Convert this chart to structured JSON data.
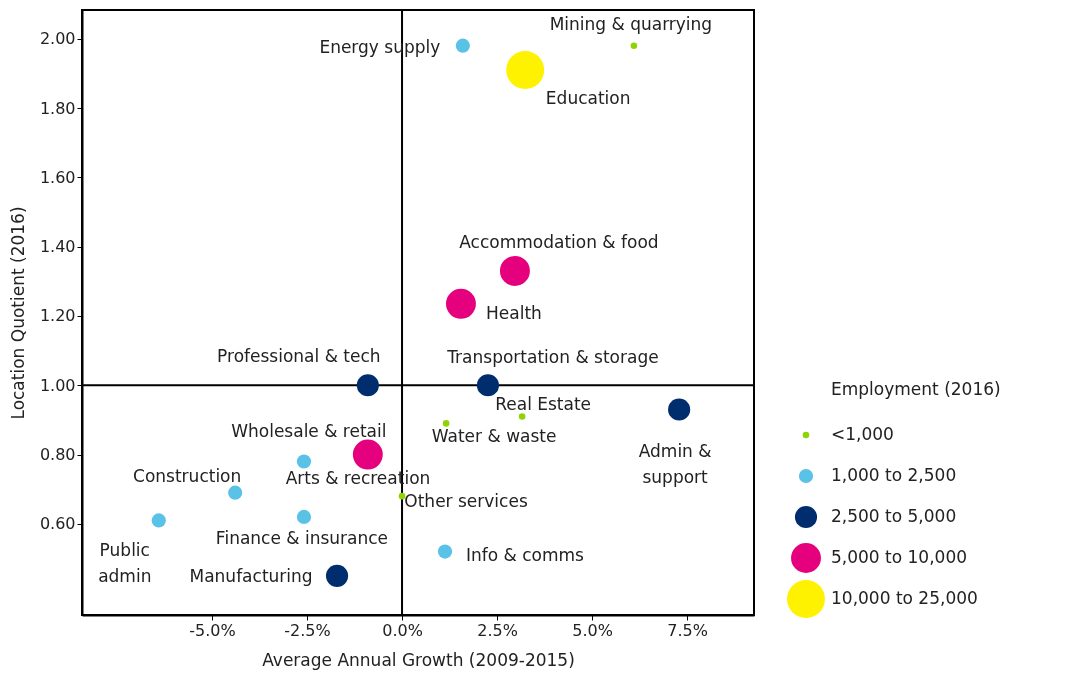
{
  "chart_data": {
    "type": "bubble",
    "xlabel": "Average Annual Growth (2009-2015)",
    "ylabel": "Location Quotient (2016)",
    "legend_title": "Employment (2016)",
    "legend": "right",
    "grid": false,
    "xlim": [
      -8.42,
      9.26
    ],
    "ylim": [
      0.337,
      2.083
    ],
    "xticks": [
      {
        "value": -5,
        "label": "-5.0%"
      },
      {
        "value": -2.5,
        "label": "-2.5%"
      },
      {
        "value": 0,
        "label": "0.0%"
      },
      {
        "value": 2.5,
        "label": "2.5%"
      },
      {
        "value": 5,
        "label": "5.0%"
      },
      {
        "value": 7.5,
        "label": "7.5%"
      }
    ],
    "yticks": [
      {
        "value": 0.6,
        "label": "0.60"
      },
      {
        "value": 0.8,
        "label": "0.80"
      },
      {
        "value": 1,
        "label": "1.00"
      },
      {
        "value": 1.2,
        "label": "1.20"
      },
      {
        "value": 1.4,
        "label": "1.40"
      },
      {
        "value": 1.6,
        "label": "1.60"
      },
      {
        "value": 1.8,
        "label": "1.80"
      },
      {
        "value": 2,
        "label": "2.00"
      }
    ],
    "series": [
      {
        "name": "<1,000",
        "color": "#8fd400",
        "x": [
          6.1,
          3.16,
          1.16,
          0.0
        ],
        "values": [
          1.98,
          0.91,
          0.89,
          0.68
        ],
        "sizes": [
          0.03,
          0.03,
          0.03,
          0.03
        ]
      },
      {
        "name": "1,000 to 2,500",
        "color": "#5bc2e7",
        "x": [
          1.6,
          -2.58,
          -4.39,
          -6.4,
          -2.58,
          1.13
        ],
        "values": [
          1.98,
          0.78,
          0.69,
          0.61,
          0.62,
          0.52
        ],
        "sizes": [
          0.14,
          0.14,
          0.14,
          0.14,
          0.14,
          0.14
        ]
      },
      {
        "name": "2,500 to 5,000",
        "color": "#002d6e",
        "x": [
          -0.9,
          2.26,
          7.29,
          -1.71
        ],
        "values": [
          1.0,
          1.0,
          0.93,
          0.45
        ],
        "sizes": [
          0.34,
          0.34,
          0.34,
          0.34
        ]
      },
      {
        "name": "5,000 to 10,000",
        "color": "#e5007e",
        "x": [
          2.97,
          1.55,
          -0.9
        ],
        "values": [
          1.33,
          1.235,
          0.8
        ],
        "sizes": [
          0.62,
          0.62,
          0.62
        ]
      },
      {
        "name": "10,000 to 25,000",
        "color": "#fff200",
        "x": [
          3.24
        ],
        "values": [
          1.91
        ],
        "sizes": [
          1
        ]
      }
    ],
    "ref_lines": [
      {
        "axis": "x",
        "value": 0,
        "color": "#000000"
      },
      {
        "axis": "y",
        "value": 1,
        "color": "#000000"
      }
    ],
    "annotations": [
      {
        "text": "Mining & quarrying",
        "x": 6.1,
        "y": 1.98
      },
      {
        "text": "Energy supply",
        "x": 1.6,
        "y": 1.98
      },
      {
        "text": "Education",
        "x": 3.24,
        "y": 1.91
      },
      {
        "text": "Accommodation & food",
        "x": 2.97,
        "y": 1.33
      },
      {
        "text": "Health",
        "x": 1.55,
        "y": 1.235
      },
      {
        "text": "Professional & tech",
        "x": -0.9,
        "y": 1.0
      },
      {
        "text": "Transportation & storage",
        "x": 2.26,
        "y": 1.0
      },
      {
        "text": "Real Estate",
        "x": 3.16,
        "y": 0.91
      },
      {
        "text": "Admin &\nsupport",
        "x": 7.29,
        "y": 0.93
      },
      {
        "text": "Water & waste",
        "x": 1.16,
        "y": 0.89
      },
      {
        "text": "Wholesale & retail",
        "x": -0.9,
        "y": 0.8
      },
      {
        "text": "Arts & recreation",
        "x": -2.58,
        "y": 0.78
      },
      {
        "text": "Construction",
        "x": -4.39,
        "y": 0.69
      },
      {
        "text": "Other services",
        "x": 0.0,
        "y": 0.68
      },
      {
        "text": "Public\nadmin",
        "x": -6.4,
        "y": 0.61
      },
      {
        "text": "Finance & insurance",
        "x": -2.58,
        "y": 0.62
      },
      {
        "text": "Info & comms",
        "x": 1.13,
        "y": 0.52
      },
      {
        "text": "Manufacturing",
        "x": -1.71,
        "y": 0.45
      }
    ]
  }
}
